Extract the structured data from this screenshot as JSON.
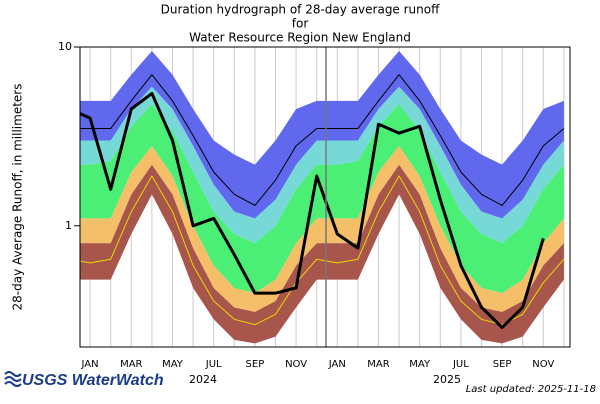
{
  "chart_data": {
    "type": "duration-hydrograph",
    "title": [
      "Duration hydrograph of 28-day average runoff",
      "for",
      "Water Resource Region New England"
    ],
    "y_label": "28-day Average Runoff, in millimeters",
    "log_y": true,
    "ylim": [
      0.21,
      10
    ],
    "yticks": [
      1,
      10
    ],
    "xgrid": true,
    "categories": [
      null,
      "JAN",
      null,
      "MAR",
      null,
      "MAY",
      null,
      "JUL",
      null,
      "SEP",
      null,
      "NOV",
      null,
      "JAN",
      null,
      "MAR",
      null,
      "MAY",
      null,
      "JUL",
      null,
      "SEP",
      null,
      "NOV",
      null
    ],
    "years": [
      "2024",
      "2025"
    ],
    "band_colors": [
      "#a8554c",
      "#f5bf6a",
      "#4cef76",
      "#77d8d8",
      "#6068ee"
    ],
    "series": [
      {
        "values": [
          0.5,
          0.5,
          0.5,
          0.9,
          1.5,
          0.9,
          0.45,
          0.3,
          0.23,
          0.22,
          0.24,
          0.35,
          0.5,
          0.5,
          0.5,
          0.9,
          1.5,
          0.9,
          0.45,
          0.3,
          0.23,
          0.22,
          0.24,
          0.35,
          0.5
        ]
      },
      {
        "values": [
          0.8,
          0.8,
          0.8,
          1.5,
          2.2,
          1.5,
          0.75,
          0.45,
          0.35,
          0.33,
          0.38,
          0.6,
          0.8,
          0.8,
          0.8,
          1.5,
          2.2,
          1.5,
          0.75,
          0.45,
          0.35,
          0.33,
          0.38,
          0.6,
          0.8
        ]
      },
      {
        "values": [
          1.1,
          1.1,
          1.1,
          2,
          2.8,
          1.9,
          1,
          0.6,
          0.45,
          0.42,
          0.5,
          0.8,
          1.1,
          1.1,
          1.1,
          2,
          2.8,
          1.9,
          1,
          0.6,
          0.45,
          0.42,
          0.5,
          0.8,
          1.1
        ]
      },
      {
        "values": [
          2.2,
          2.2,
          2.3,
          3.6,
          4.8,
          3.4,
          2,
          1.2,
          0.9,
          0.8,
          1,
          1.6,
          2.2,
          2.2,
          2.3,
          3.6,
          4.8,
          3.4,
          2,
          1.2,
          0.9,
          0.8,
          1,
          1.6,
          2.2
        ]
      },
      {
        "values": [
          3,
          3,
          3,
          4.5,
          6,
          4.5,
          2.8,
          1.7,
          1.2,
          1.1,
          1.4,
          2.2,
          3,
          3,
          3,
          4.5,
          6,
          4.5,
          2.8,
          1.7,
          1.2,
          1.1,
          1.4,
          2.2,
          3
        ]
      },
      {
        "values": [
          5,
          5,
          5,
          7,
          9.5,
          7,
          4.5,
          3,
          2.5,
          2.2,
          3,
          4.5,
          5,
          5,
          5,
          7,
          9.5,
          7,
          4.5,
          3,
          2.5,
          2.2,
          3,
          4.5,
          5
        ]
      }
    ],
    "lines": [
      {
        "color": "#e8d800",
        "width": 1,
        "values": [
          0.65,
          0.62,
          0.65,
          1.2,
          1.9,
          1.2,
          0.6,
          0.38,
          0.3,
          0.28,
          0.32,
          0.48,
          0.65,
          0.62,
          0.65,
          1.2,
          1.9,
          1.2,
          0.6,
          0.38,
          0.3,
          0.28,
          0.32,
          0.48,
          0.65
        ]
      },
      {
        "color": "#000000",
        "width": 1,
        "values": [
          3.5,
          3.5,
          3.5,
          5,
          7,
          5,
          3.2,
          2,
          1.5,
          1.3,
          1.8,
          2.8,
          3.5,
          3.5,
          3.5,
          5,
          7,
          5,
          3.2,
          2,
          1.5,
          1.3,
          1.8,
          2.8,
          3.5
        ]
      },
      {
        "color": "#000000",
        "width": 3,
        "values": [
          4.5,
          4,
          1.6,
          4.5,
          5.5,
          3,
          1,
          1.1,
          0.69,
          0.42,
          0.42,
          0.45,
          1.9,
          0.9,
          0.75,
          3.7,
          3.3,
          3.6,
          1.4,
          0.6,
          0.35,
          0.27,
          0.35,
          0.85,
          null
        ]
      }
    ],
    "logo": "USGS WaterWatch",
    "updated": "Last updated: 2025-11-18"
  }
}
